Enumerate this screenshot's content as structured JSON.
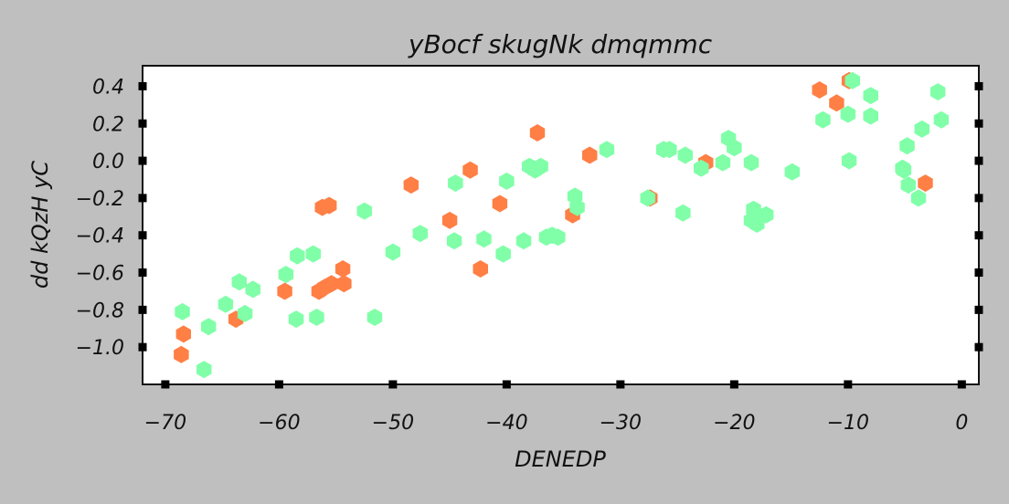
{
  "chart_data": {
    "type": "scatter",
    "title": "yBocf skugNk dmqmmc",
    "xlabel": "DENEDP",
    "ylabel": "dd kQzH yC",
    "xlim": [
      -72,
      1.5
    ],
    "ylim": [
      -1.2,
      0.51
    ],
    "xticks": [
      -70,
      -60,
      -50,
      -40,
      -30,
      -20,
      -10,
      0
    ],
    "xtick_labels": [
      "−70",
      "−60",
      "−50",
      "−40",
      "−30",
      "−20",
      "−10",
      "0"
    ],
    "yticks": [
      -1.0,
      -0.8,
      -0.6,
      -0.4,
      -0.2,
      0.0,
      0.2,
      0.4
    ],
    "ytick_labels": [
      "−1.0",
      "−0.8",
      "−0.6",
      "−0.4",
      "−0.2",
      "0.0",
      "0.2",
      "0.4"
    ],
    "grid": false,
    "marker": "hexagon",
    "series": [
      {
        "color": "#ff7f45",
        "points": [
          [
            -68.6,
            -1.04
          ],
          [
            -68.4,
            -0.93
          ],
          [
            -63.8,
            -0.85
          ],
          [
            -59.5,
            -0.7
          ],
          [
            -56.5,
            -0.7
          ],
          [
            -56.2,
            -0.25
          ],
          [
            -56.0,
            -0.68
          ],
          [
            -55.6,
            -0.24
          ],
          [
            -55.4,
            -0.66
          ],
          [
            -54.4,
            -0.58
          ],
          [
            -54.3,
            -0.66
          ],
          [
            -48.4,
            -0.13
          ],
          [
            -45.0,
            -0.32
          ],
          [
            -43.2,
            -0.05
          ],
          [
            -42.3,
            -0.58
          ],
          [
            -40.6,
            -0.23
          ],
          [
            -37.3,
            0.15
          ],
          [
            -34.2,
            -0.29
          ],
          [
            -32.7,
            0.03
          ],
          [
            -27.4,
            -0.2
          ],
          [
            -22.5,
            -0.01
          ],
          [
            -12.5,
            0.38
          ],
          [
            -11.0,
            0.31
          ],
          [
            -9.9,
            0.43
          ],
          [
            -3.2,
            -0.12
          ]
        ]
      },
      {
        "color": "#80ffa8",
        "points": [
          [
            -68.5,
            -0.81
          ],
          [
            -66.6,
            -1.12
          ],
          [
            -66.2,
            -0.89
          ],
          [
            -64.7,
            -0.77
          ],
          [
            -63.5,
            -0.65
          ],
          [
            -63.0,
            -0.82
          ],
          [
            -62.3,
            -0.69
          ],
          [
            -59.4,
            -0.61
          ],
          [
            -58.5,
            -0.85
          ],
          [
            -58.4,
            -0.51
          ],
          [
            -57.0,
            -0.5
          ],
          [
            -56.7,
            -0.84
          ],
          [
            -52.5,
            -0.27
          ],
          [
            -51.6,
            -0.84
          ],
          [
            -50.0,
            -0.49
          ],
          [
            -47.6,
            -0.39
          ],
          [
            -44.6,
            -0.43
          ],
          [
            -44.5,
            -0.12
          ],
          [
            -42.0,
            -0.42
          ],
          [
            -40.3,
            -0.5
          ],
          [
            -40.0,
            -0.11
          ],
          [
            -38.5,
            -0.43
          ],
          [
            -38.0,
            -0.03
          ],
          [
            -37.5,
            -0.05
          ],
          [
            -37.0,
            -0.03
          ],
          [
            -36.5,
            -0.41
          ],
          [
            -36.0,
            -0.4
          ],
          [
            -35.5,
            -0.41
          ],
          [
            -34.0,
            -0.19
          ],
          [
            -33.8,
            -0.25
          ],
          [
            -31.2,
            0.06
          ],
          [
            -27.6,
            -0.2
          ],
          [
            -26.2,
            0.06
          ],
          [
            -25.7,
            0.06
          ],
          [
            -24.3,
            0.03
          ],
          [
            -24.5,
            -0.28
          ],
          [
            -22.9,
            -0.04
          ],
          [
            -21.0,
            -0.01
          ],
          [
            -20.5,
            0.12
          ],
          [
            -20.0,
            0.07
          ],
          [
            -18.5,
            -0.01
          ],
          [
            -18.5,
            -0.32
          ],
          [
            -18.3,
            -0.26
          ],
          [
            -18.0,
            -0.34
          ],
          [
            -17.7,
            -0.3
          ],
          [
            -17.2,
            -0.29
          ],
          [
            -14.9,
            -0.06
          ],
          [
            -12.2,
            0.22
          ],
          [
            -10.0,
            0.25
          ],
          [
            -9.9,
            0.0
          ],
          [
            -9.6,
            0.43
          ],
          [
            -8.0,
            0.35
          ],
          [
            -8.0,
            0.24
          ],
          [
            -5.2,
            -0.04
          ],
          [
            -5.1,
            -0.05
          ],
          [
            -4.8,
            0.08
          ],
          [
            -4.7,
            -0.13
          ],
          [
            -3.8,
            -0.2
          ],
          [
            -3.5,
            0.17
          ],
          [
            -2.1,
            0.37
          ],
          [
            -1.8,
            0.22
          ]
        ]
      }
    ]
  }
}
